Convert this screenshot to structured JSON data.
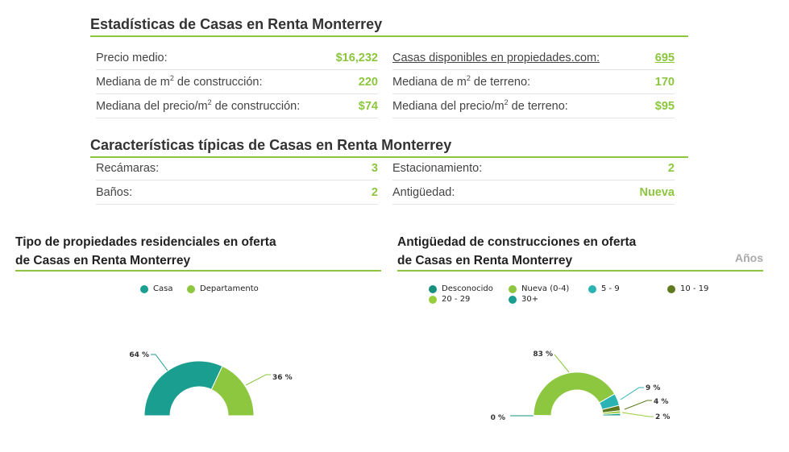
{
  "stats": {
    "title": "Estadísticas de Casas en Renta Monterrey",
    "left": [
      {
        "pre": "Precio medio:",
        "sup": "",
        "post": "",
        "value": "$16,232"
      },
      {
        "pre": "Mediana de m",
        "sup": "2",
        "post": " de construcción:",
        "value": "220"
      },
      {
        "pre": "Mediana del precio/m",
        "sup": "2",
        "post": " de construcción:",
        "value": "$74"
      }
    ],
    "right": [
      {
        "pre": "Casas disponibles en propiedades.com:",
        "sup": "",
        "post": "",
        "value": "695"
      },
      {
        "pre": "Mediana de m",
        "sup": "2",
        "post": " de terreno:",
        "value": "170"
      },
      {
        "pre": "Mediana del precio/m",
        "sup": "2",
        "post": " de terreno:",
        "value": "$95"
      }
    ]
  },
  "typical": {
    "title": "Características típicas de Casas en Renta Monterrey",
    "left": [
      {
        "label": "Recámaras:",
        "value": "3"
      },
      {
        "label": "Baños:",
        "value": "2"
      }
    ],
    "right": [
      {
        "label": "Estacionamiento:",
        "value": "2"
      },
      {
        "label": "Antigüedad:",
        "value": "Nueva"
      }
    ]
  },
  "colors": {
    "accent": "#8cc63f",
    "teal": "#1a9e8f",
    "green": "#8dc63f",
    "cyan": "#2bb3b3",
    "olive": "#5f7a1e",
    "lightgreen": "#9acd3c",
    "darkteal": "#17907f"
  },
  "chart_data": [
    {
      "type": "pie",
      "title_line1": "Tipo de propiedades residenciales en oferta",
      "title_line2": "de Casas en Renta Monterrey",
      "legend_position": "top",
      "categories": [
        "Casa",
        "Departamento"
      ],
      "values": [
        64,
        36
      ],
      "labels": [
        "64 %",
        "36 %"
      ],
      "colors": [
        "#1a9e8f",
        "#8dc63f"
      ]
    },
    {
      "type": "pie",
      "title_line1": "Antigüedad de construcciones en oferta",
      "title_line2": "de Casas en Renta Monterrey",
      "unit_label": "Años",
      "legend_position": "top",
      "categories": [
        "Desconocido",
        "Nueva (0-4)",
        "5 - 9",
        "10 - 19",
        "20 - 29",
        "30+"
      ],
      "values": [
        0.3,
        83,
        9,
        4,
        2,
        1.7
      ],
      "labels": [
        "0 %",
        "83 %",
        "9 %",
        "4 %",
        "2 %",
        ""
      ],
      "colors": [
        "#17907f",
        "#8dc63f",
        "#2bb3b3",
        "#5f7a1e",
        "#9acd3c",
        "#1a9e8f"
      ]
    }
  ]
}
